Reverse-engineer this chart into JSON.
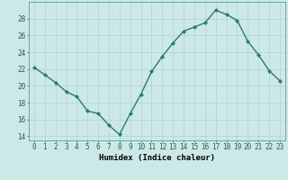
{
  "x": [
    0,
    1,
    2,
    3,
    4,
    5,
    6,
    7,
    8,
    9,
    10,
    11,
    12,
    13,
    14,
    15,
    16,
    17,
    18,
    19,
    20,
    21,
    22,
    23
  ],
  "y": [
    22.2,
    21.3,
    20.4,
    19.3,
    18.7,
    17.0,
    16.7,
    15.3,
    14.2,
    16.7,
    19.0,
    21.7,
    23.5,
    25.1,
    26.5,
    27.0,
    27.5,
    29.0,
    28.5,
    27.8,
    25.3,
    23.7,
    21.8,
    20.6
  ],
  "line_color": "#2d7a6e",
  "marker": "D",
  "marker_size": 2.0,
  "bg_color": "#cce9e7",
  "grid_color": "#afd4d0",
  "xlabel": "Humidex (Indice chaleur)",
  "xlim": [
    -0.5,
    23.5
  ],
  "ylim": [
    13.5,
    30
  ],
  "yticks": [
    14,
    16,
    18,
    20,
    22,
    24,
    26,
    28
  ],
  "xticks": [
    0,
    1,
    2,
    3,
    4,
    5,
    6,
    7,
    8,
    9,
    10,
    11,
    12,
    13,
    14,
    15,
    16,
    17,
    18,
    19,
    20,
    21,
    22,
    23
  ],
  "xlabel_fontsize": 6.5,
  "tick_fontsize": 5.5,
  "line_width": 1.0
}
